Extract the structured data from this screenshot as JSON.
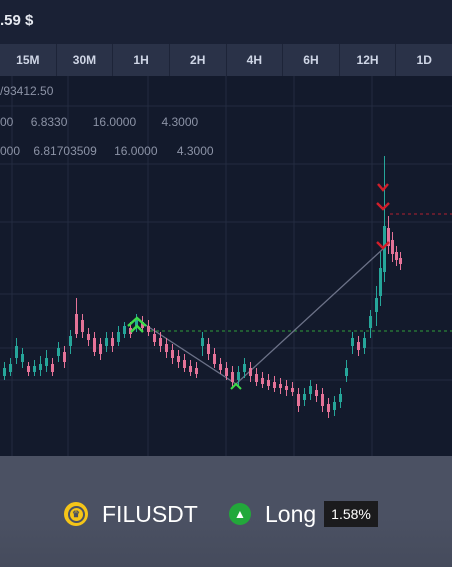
{
  "header": {
    "price_fragment": ".59 $"
  },
  "timeframes": [
    "15M",
    "30M",
    "1H",
    "2H",
    "4H",
    "6H",
    "12H",
    "1D"
  ],
  "indicators": {
    "row1": "/93412.50",
    "row2": [
      "00",
      "6.8330",
      "16.0000",
      "4.3000"
    ],
    "row3": [
      "000",
      "6.81703509",
      "16.0000",
      "4.3000"
    ]
  },
  "signal": {
    "symbol": "FILUSDT",
    "direction": "Long",
    "change": "1.58%"
  },
  "colors": {
    "up": "#26a69a",
    "down": "#e57398",
    "buy_marker": "#3ddc4a",
    "sell_marker": "#d21e2a",
    "long_badge": "#22a83a",
    "coin_icon": "#f5c518"
  },
  "icons": {
    "coin": "crown-coin-icon",
    "direction": "arrow-up-circle-icon"
  }
}
